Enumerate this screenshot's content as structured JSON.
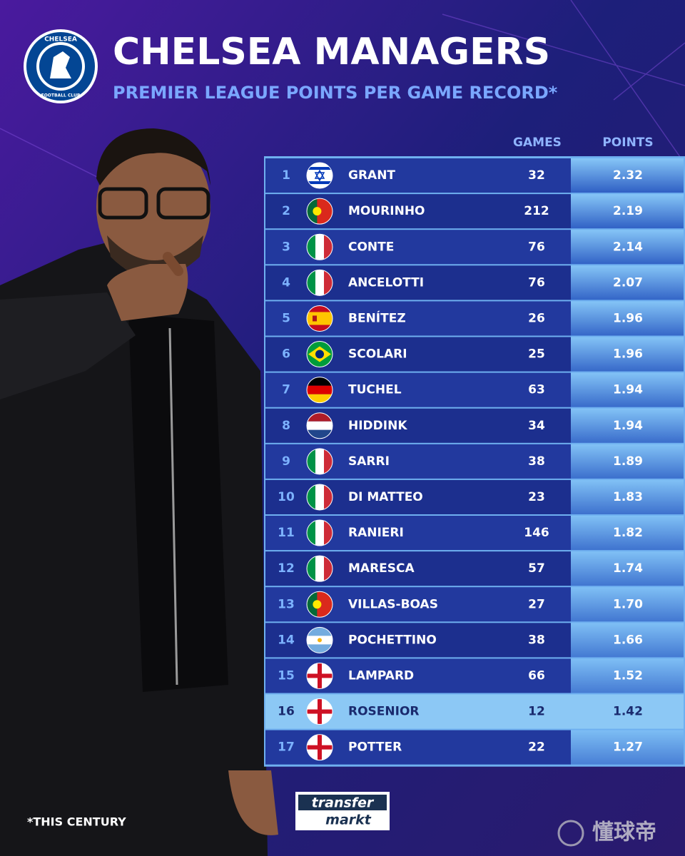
{
  "header": {
    "badge": {
      "top": "CHELSEA",
      "bottom": "FOOTBALL CLUB"
    },
    "title": "CHELSEA MANAGERS",
    "subtitle": "PREMIER LEAGUE POINTS PER GAME RECORD*"
  },
  "table": {
    "columns": [
      "GAMES",
      "POINTS"
    ],
    "rows": [
      [
        "1",
        "GRANT",
        "32",
        "2.32"
      ],
      [
        "2",
        "MOURINHO",
        "212",
        "2.19"
      ],
      [
        "3",
        "CONTE",
        "76",
        "2.14"
      ],
      [
        "4",
        "ANCELOTTI",
        "76",
        "2.07"
      ],
      [
        "5",
        "BENÍTEZ",
        "26",
        "1.96"
      ],
      [
        "6",
        "SCOLARI",
        "25",
        "1.96"
      ],
      [
        "7",
        "TUCHEL",
        "63",
        "1.94"
      ],
      [
        "8",
        "HIDDINK",
        "34",
        "1.94"
      ],
      [
        "9",
        "SARRI",
        "38",
        "1.89"
      ],
      [
        "10",
        "DI MATTEO",
        "23",
        "1.83"
      ],
      [
        "11",
        "RANIERI",
        "146",
        "1.82"
      ],
      [
        "12",
        "MARESCA",
        "57",
        "1.74"
      ],
      [
        "13",
        "VILLAS-BOAS",
        "27",
        "1.70"
      ],
      [
        "14",
        "POCHETTINO",
        "38",
        "1.66"
      ],
      [
        "15",
        "LAMPARD",
        "66",
        "1.52"
      ],
      [
        "16",
        "ROSENIOR",
        "12",
        "1.42"
      ],
      [
        "17",
        "POTTER",
        "22",
        "1.27"
      ]
    ]
  },
  "footer": {
    "note": "*THIS CENTURY",
    "logo": [
      "transfer",
      "markt"
    ],
    "watermark": "懂球帝"
  }
}
